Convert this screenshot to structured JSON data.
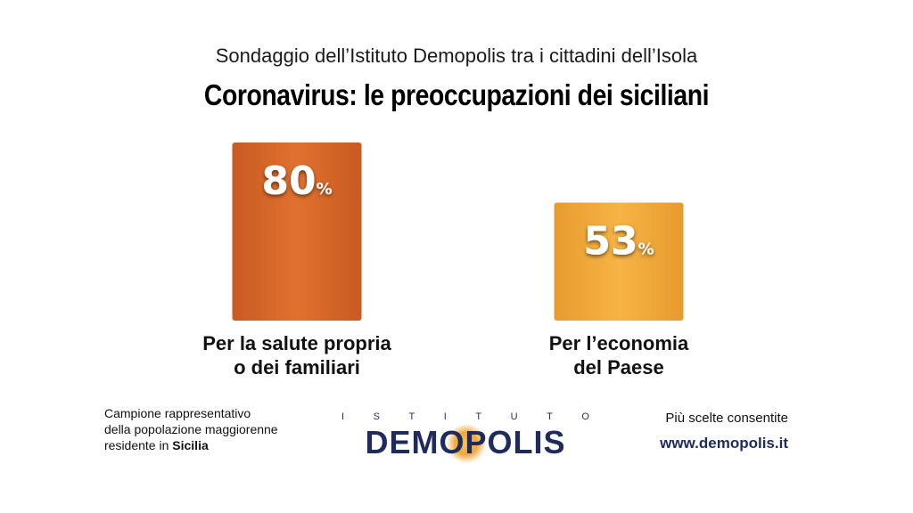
{
  "header": {
    "subtitle": "Sondaggio dell’Istituto Demopolis tra i cittadini dell’Isola",
    "title": "Coronavirus: le preoccupazioni dei siciliani"
  },
  "chart_data": {
    "type": "bar",
    "categories": [
      "Per la salute propria o dei familiari",
      "Per l’economia del Paese"
    ],
    "category_lines": [
      [
        "Per la salute propria",
        "o dei familiari"
      ],
      [
        "Per l’economia",
        "del Paese"
      ]
    ],
    "values": [
      80,
      53
    ],
    "value_unit": "%",
    "bar_colors": [
      "#de6a2a",
      "#f2a93b"
    ],
    "ylim": [
      0,
      100
    ],
    "grid": false
  },
  "footer": {
    "sample_line1": "Campione rappresentativo",
    "sample_line2": "della popolazione maggiorenne",
    "sample_line3_prefix": "residente in ",
    "sample_region": "Sicilia",
    "note": "Più scelte consentite",
    "url": "www.demopolis.it"
  },
  "logo": {
    "top_letters": [
      "I",
      "S",
      "T",
      "I",
      "T",
      "U",
      "T",
      "O"
    ],
    "name": "DEMOPOLIS",
    "color": "#1f2b5c"
  }
}
